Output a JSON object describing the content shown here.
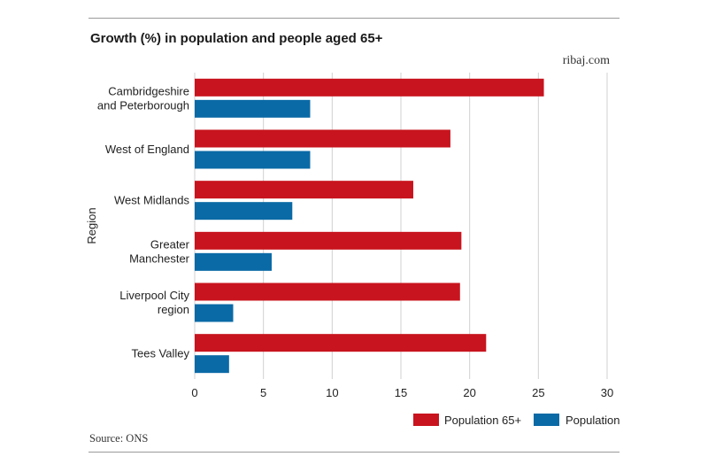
{
  "page": {
    "site": "ribaj.com",
    "source": "Source: ONS"
  },
  "colors": {
    "population_65_plus": "#c8141e",
    "population": "#0a6aa6",
    "grid": "#d0d0d0",
    "rule": "#9a9a9a"
  },
  "chart_data": {
    "type": "bar",
    "orientation": "horizontal",
    "title": "Growth (%) in population and people aged 65+",
    "xlabel": "",
    "ylabel": "Region",
    "xlim": [
      0,
      30
    ],
    "xticks": [
      0,
      5,
      10,
      15,
      20,
      25,
      30
    ],
    "grid": true,
    "legend_position": "bottom-right",
    "categories": [
      [
        "Cambridgeshire",
        "and Peterborough"
      ],
      [
        "West of England"
      ],
      [
        "West Midlands"
      ],
      [
        "Greater",
        "Manchester"
      ],
      [
        "Liverpool City",
        "region"
      ],
      [
        "Tees Valley"
      ]
    ],
    "series": [
      {
        "name": "Population 65+",
        "color": "#c8141e",
        "values": [
          25.4,
          18.6,
          15.9,
          19.4,
          19.3,
          21.2
        ]
      },
      {
        "name": "Population",
        "color": "#0a6aa6",
        "values": [
          8.4,
          8.4,
          7.1,
          5.6,
          2.8,
          2.5
        ]
      }
    ]
  }
}
